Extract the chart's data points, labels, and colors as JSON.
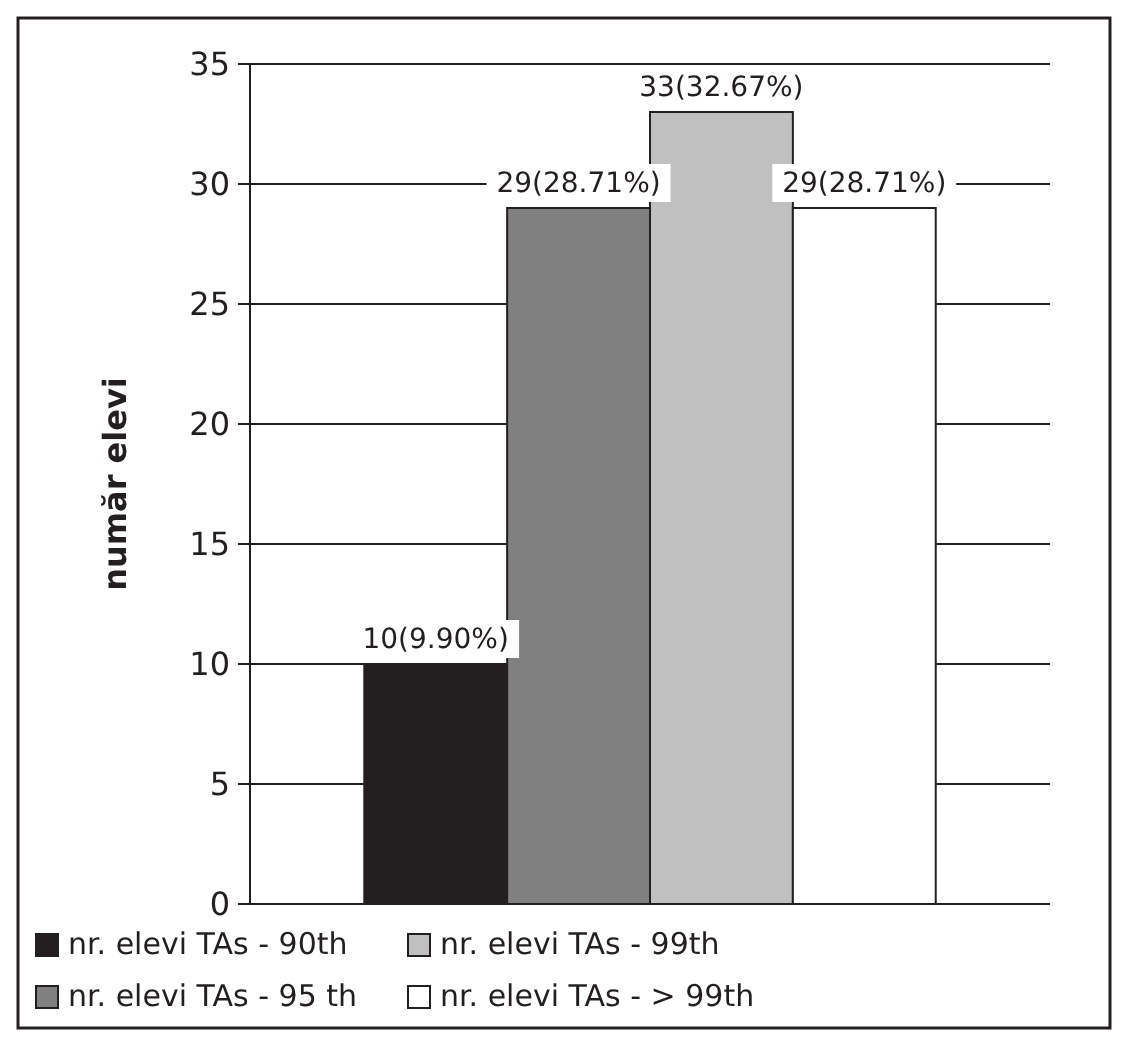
{
  "chart_data": {
    "type": "bar",
    "ylabel": "număr elevi",
    "categories": [
      null
    ],
    "ylim": [
      0,
      35
    ],
    "yticks": [
      0,
      5,
      10,
      15,
      20,
      25,
      30,
      35
    ],
    "grid": "y",
    "legend": "bottom",
    "series": [
      {
        "name": "nr. elevi TAs - 90th",
        "color": "#231f20",
        "values": [
          10
        ],
        "value_labels": [
          "10(9.90%)"
        ]
      },
      {
        "name": "nr. elevi TAs - 95 th",
        "color": "#808080",
        "values": [
          29
        ],
        "value_labels": [
          "29(28.71%)"
        ]
      },
      {
        "name": "nr. elevi TAs - 99th",
        "color": "#c0c0c0",
        "values": [
          33
        ],
        "value_labels": [
          "33(32.67%)"
        ]
      },
      {
        "name": "nr. elevi TAs - > 99th",
        "color": "#ffffff",
        "values": [
          29
        ],
        "value_labels": [
          "29(28.71%)"
        ]
      }
    ]
  }
}
